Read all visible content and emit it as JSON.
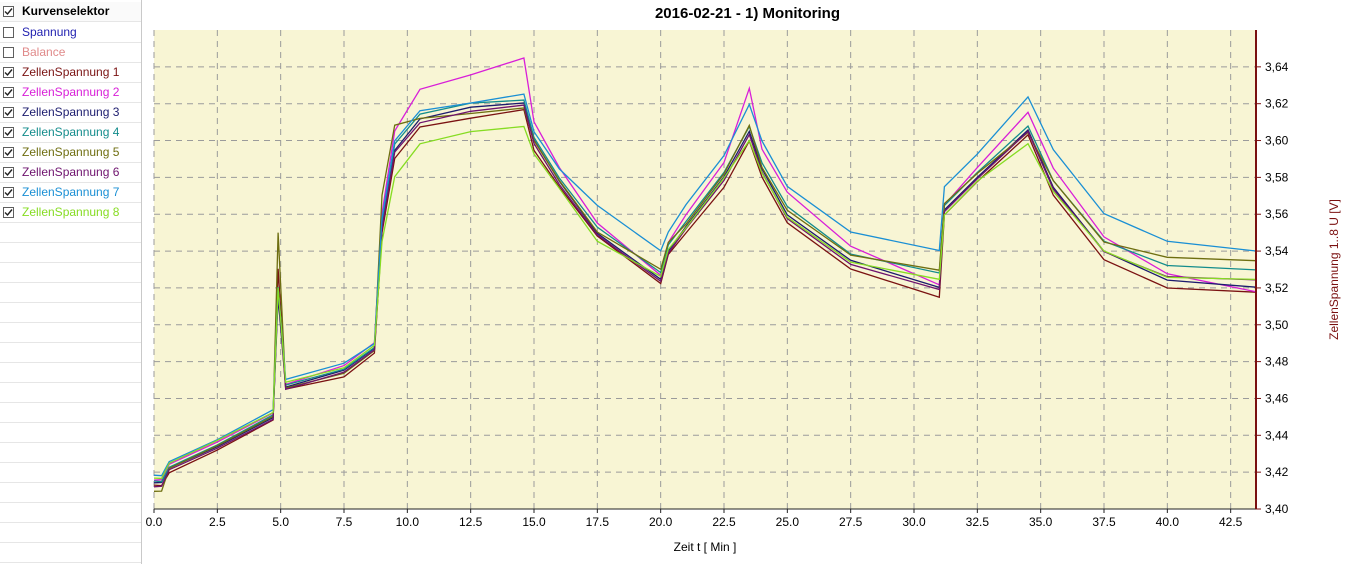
{
  "selector": {
    "header": {
      "label": "Kurvenselektor",
      "checked": true
    },
    "items": [
      {
        "label": "Spannung",
        "checked": false,
        "color": "#1f1fb0"
      },
      {
        "label": "Balance",
        "checked": false,
        "color": "#e08a8a"
      },
      {
        "label": "ZellenSpannung 1",
        "checked": true,
        "color": "#7a1212"
      },
      {
        "label": "ZellenSpannung 2",
        "checked": true,
        "color": "#d81ed8"
      },
      {
        "label": "ZellenSpannung 3",
        "checked": true,
        "color": "#1c1c6e"
      },
      {
        "label": "ZellenSpannung 4",
        "checked": true,
        "color": "#138c8c"
      },
      {
        "label": "ZellenSpannung 5",
        "checked": true,
        "color": "#6e6e10"
      },
      {
        "label": "ZellenSpannung 6",
        "checked": true,
        "color": "#6e126e"
      },
      {
        "label": "ZellenSpannung 7",
        "checked": true,
        "color": "#1a8fd4"
      },
      {
        "label": "ZellenSpannung 8",
        "checked": true,
        "color": "#86dc22"
      }
    ]
  },
  "chart_data": {
    "type": "line",
    "title": "2016-02-21 - 1) Monitoring",
    "xlabel": "Zeit  t  [ Min ]",
    "ylabel": "ZellenSpannung 1..8  U  [V]",
    "xlim": [
      0,
      43.5
    ],
    "ylim": [
      3.4,
      3.66
    ],
    "x_ticks": [
      0.0,
      2.5,
      5.0,
      7.5,
      10.0,
      12.5,
      15.0,
      17.5,
      20.0,
      22.5,
      25.0,
      27.5,
      30.0,
      32.5,
      35.0,
      37.5,
      40.0,
      42.5
    ],
    "x_tick_labels": [
      "0.0",
      "2.5",
      "5.0",
      "7.5",
      "10.0",
      "12.5",
      "15.0",
      "17.5",
      "20.0",
      "22.5",
      "25.0",
      "27.5",
      "30.0",
      "32.5",
      "35.0",
      "37.5",
      "40.0",
      "42.5"
    ],
    "y_ticks": [
      3.4,
      3.42,
      3.44,
      3.46,
      3.48,
      3.5,
      3.52,
      3.54,
      3.56,
      3.58,
      3.6,
      3.62,
      3.64
    ],
    "y_tick_labels": [
      "3,40",
      "3,42",
      "3,44",
      "3,46",
      "3,48",
      "3,50",
      "3,52",
      "3,54",
      "3,56",
      "3,58",
      "3,60",
      "3,62",
      "3,64"
    ],
    "grid": true,
    "plot_background": "#f8f5d4",
    "axis_color": "#7a1010",
    "x": [
      0.0,
      0.3,
      0.6,
      2.5,
      4.7,
      4.9,
      5.2,
      7.5,
      8.7,
      9.0,
      9.5,
      10.5,
      12.5,
      14.6,
      15.0,
      16.0,
      17.5,
      20.0,
      20.3,
      21.0,
      22.5,
      23.5,
      24.0,
      25.0,
      27.5,
      31.0,
      31.2,
      32.5,
      34.5,
      35.5,
      37.5,
      40.0,
      43.5
    ],
    "series": [
      {
        "name": "ZellenSpannung 1",
        "color": "#7a1212",
        "values": [
          3.413,
          3.413,
          3.42,
          3.432,
          3.448,
          3.53,
          3.465,
          3.472,
          3.485,
          3.55,
          3.59,
          3.607,
          3.612,
          3.617,
          3.595,
          3.575,
          3.548,
          3.522,
          3.538,
          3.55,
          3.575,
          3.6,
          3.58,
          3.555,
          3.53,
          3.515,
          3.56,
          3.578,
          3.603,
          3.57,
          3.535,
          3.52,
          3.518
        ]
      },
      {
        "name": "ZellenSpannung 2",
        "color": "#d81ed8",
        "values": [
          3.416,
          3.416,
          3.424,
          3.436,
          3.452,
          3.52,
          3.468,
          3.478,
          3.49,
          3.56,
          3.605,
          3.628,
          3.636,
          3.645,
          3.61,
          3.585,
          3.555,
          3.527,
          3.545,
          3.56,
          3.588,
          3.628,
          3.595,
          3.572,
          3.543,
          3.522,
          3.565,
          3.585,
          3.615,
          3.585,
          3.548,
          3.528,
          3.518
        ]
      },
      {
        "name": "ZellenSpannung 3",
        "color": "#1c1c6e",
        "values": [
          3.414,
          3.414,
          3.422,
          3.434,
          3.45,
          3.515,
          3.466,
          3.475,
          3.487,
          3.553,
          3.595,
          3.612,
          3.618,
          3.62,
          3.6,
          3.578,
          3.55,
          3.525,
          3.54,
          3.553,
          3.58,
          3.605,
          3.585,
          3.56,
          3.535,
          3.52,
          3.562,
          3.58,
          3.606,
          3.575,
          3.54,
          3.524,
          3.52
        ]
      },
      {
        "name": "ZellenSpannung 4",
        "color": "#138c8c",
        "values": [
          3.415,
          3.415,
          3.423,
          3.435,
          3.451,
          3.52,
          3.467,
          3.476,
          3.488,
          3.556,
          3.598,
          3.614,
          3.62,
          3.622,
          3.602,
          3.58,
          3.553,
          3.528,
          3.543,
          3.556,
          3.583,
          3.608,
          3.588,
          3.564,
          3.538,
          3.528,
          3.565,
          3.583,
          3.608,
          3.578,
          3.545,
          3.532,
          3.53
        ]
      },
      {
        "name": "ZellenSpannung 5",
        "color": "#6e6e10",
        "values": [
          3.41,
          3.41,
          3.422,
          3.434,
          3.45,
          3.55,
          3.466,
          3.474,
          3.486,
          3.57,
          3.608,
          3.612,
          3.615,
          3.618,
          3.6,
          3.578,
          3.55,
          3.53,
          3.545,
          3.555,
          3.582,
          3.608,
          3.585,
          3.562,
          3.538,
          3.53,
          3.566,
          3.582,
          3.604,
          3.578,
          3.545,
          3.537,
          3.535
        ]
      },
      {
        "name": "ZellenSpannung 6",
        "color": "#6e126e",
        "values": [
          3.412,
          3.412,
          3.421,
          3.433,
          3.449,
          3.52,
          3.465,
          3.474,
          3.486,
          3.552,
          3.594,
          3.61,
          3.616,
          3.619,
          3.598,
          3.576,
          3.549,
          3.524,
          3.539,
          3.552,
          3.578,
          3.603,
          3.583,
          3.558,
          3.533,
          3.519,
          3.561,
          3.579,
          3.605,
          3.574,
          3.54,
          3.526,
          3.524
        ]
      },
      {
        "name": "ZellenSpannung 7",
        "color": "#1a8fd4",
        "values": [
          3.418,
          3.418,
          3.426,
          3.438,
          3.454,
          3.52,
          3.47,
          3.479,
          3.49,
          3.558,
          3.6,
          3.616,
          3.62,
          3.625,
          3.605,
          3.585,
          3.565,
          3.54,
          3.55,
          3.565,
          3.592,
          3.62,
          3.6,
          3.575,
          3.55,
          3.54,
          3.575,
          3.593,
          3.624,
          3.595,
          3.56,
          3.545,
          3.54
        ]
      },
      {
        "name": "ZellenSpannung 8",
        "color": "#86dc22",
        "values": [
          3.417,
          3.417,
          3.425,
          3.437,
          3.452,
          3.52,
          3.469,
          3.477,
          3.489,
          3.545,
          3.58,
          3.598,
          3.605,
          3.608,
          3.593,
          3.574,
          3.545,
          3.526,
          3.541,
          3.553,
          3.58,
          3.6,
          3.582,
          3.558,
          3.534,
          3.525,
          3.56,
          3.578,
          3.598,
          3.572,
          3.54,
          3.526,
          3.525
        ]
      }
    ]
  }
}
